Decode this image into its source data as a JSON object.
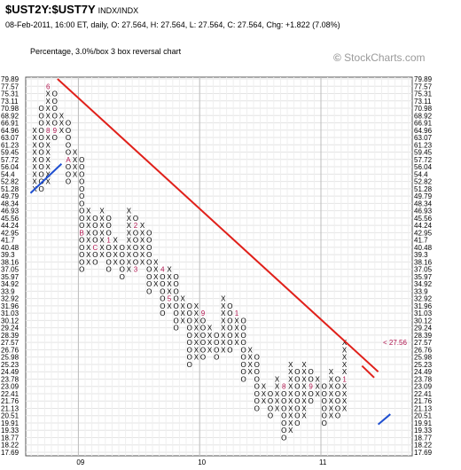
{
  "header": {
    "symbol": "$UST2Y:$UST7Y",
    "exchange": "INDX/INDX",
    "quote": "08-Feb-2011, 16:00 ET, daily, O: 27.564, H: 27.564, L: 27.564, C: 27.564, Chg: +1.822 (7.08%)",
    "description": "Percentage, 3.0%/box 3 box reversal chart",
    "brand_mark": "©",
    "brand_name": " StockCharts.com"
  },
  "chart_data": {
    "type": "point-and-figure",
    "y_ticks": [
      "79.89",
      "77.57",
      "75.31",
      "73.11",
      "70.98",
      "68.92",
      "66.91",
      "64.96",
      "63.07",
      "61.23",
      "59.45",
      "57.72",
      "56.04",
      "54.4",
      "52.82",
      "51.28",
      "49.79",
      "48.34",
      "46.93",
      "45.56",
      "44.24",
      "42.95",
      "41.7",
      "40.48",
      "39.3",
      "38.16",
      "37.05",
      "35.97",
      "34.92",
      "33.9",
      "32.92",
      "31.96",
      "31.03",
      "30.12",
      "29.24",
      "28.39",
      "27.57",
      "26.76",
      "25.98",
      "25.23",
      "24.49",
      "23.78",
      "23.09",
      "22.41",
      "21.76",
      "21.13",
      "20.51",
      "19.91",
      "19.33",
      "18.77",
      "18.22",
      "17.69"
    ],
    "x_labels": [
      {
        "text": "09",
        "column": 7
      },
      {
        "text": "10",
        "column": 25
      },
      {
        "text": "11",
        "column": 43
      }
    ],
    "last_price_label": "< 27.56",
    "last_price_index": 36,
    "box_size": "3.0%",
    "reversal": 3,
    "grid": true,
    "columns": [
      {
        "type": "X",
        "start": 15,
        "end": 7
      },
      {
        "type": "O",
        "start": 4,
        "end": 15
      },
      {
        "type": "X",
        "start": 14,
        "end": 1
      },
      {
        "type": "O",
        "start": 2,
        "end": 8
      },
      {
        "type": "X",
        "start": 7,
        "end": 5
      },
      {
        "type": "O",
        "start": 6,
        "end": 14
      },
      {
        "type": "X",
        "start": 13,
        "end": 10
      },
      {
        "type": "O",
        "start": 11,
        "end": 26
      },
      {
        "type": "X",
        "start": 25,
        "end": 18
      },
      {
        "type": "O",
        "start": 19,
        "end": 25
      },
      {
        "type": "X",
        "start": 24,
        "end": 18
      },
      {
        "type": "O",
        "start": 19,
        "end": 26
      },
      {
        "type": "X",
        "start": 25,
        "end": 22
      },
      {
        "type": "O",
        "start": 23,
        "end": 27
      },
      {
        "type": "X",
        "start": 26,
        "end": 18
      },
      {
        "type": "O",
        "start": 19,
        "end": 26
      },
      {
        "type": "X",
        "start": 25,
        "end": 20
      },
      {
        "type": "O",
        "start": 21,
        "end": 29
      },
      {
        "type": "X",
        "start": 28,
        "end": 25
      },
      {
        "type": "O",
        "start": 26,
        "end": 32
      },
      {
        "type": "X",
        "start": 31,
        "end": 26
      },
      {
        "type": "O",
        "start": 27,
        "end": 34
      },
      {
        "type": "X",
        "start": 33,
        "end": 30
      },
      {
        "type": "O",
        "start": 31,
        "end": 39
      },
      {
        "type": "X",
        "start": 38,
        "end": 31
      },
      {
        "type": "O",
        "start": 32,
        "end": 38
      },
      {
        "type": "X",
        "start": 37,
        "end": 34
      },
      {
        "type": "O",
        "start": 35,
        "end": 38
      },
      {
        "type": "X",
        "start": 37,
        "end": 30
      },
      {
        "type": "O",
        "start": 31,
        "end": 37
      },
      {
        "type": "X",
        "start": 36,
        "end": 32
      },
      {
        "type": "O",
        "start": 33,
        "end": 41
      },
      {
        "type": "X",
        "start": 40,
        "end": 37
      },
      {
        "type": "O",
        "start": 38,
        "end": 45
      },
      {
        "type": "X",
        "start": 44,
        "end": 42
      },
      {
        "type": "O",
        "start": 43,
        "end": 46
      },
      {
        "type": "X",
        "start": 45,
        "end": 41
      },
      {
        "type": "O",
        "start": 42,
        "end": 49
      },
      {
        "type": "X",
        "start": 48,
        "end": 39
      },
      {
        "type": "O",
        "start": 40,
        "end": 47
      },
      {
        "type": "X",
        "start": 46,
        "end": 39
      },
      {
        "type": "O",
        "start": 40,
        "end": 44
      },
      {
        "type": "X",
        "start": 43,
        "end": 41
      },
      {
        "type": "O",
        "start": 42,
        "end": 47
      },
      {
        "type": "X",
        "start": 46,
        "end": 40
      },
      {
        "type": "O",
        "start": 41,
        "end": 46
      },
      {
        "type": "X",
        "start": 45,
        "end": 36
      }
    ],
    "month_markers": [
      {
        "text": "5",
        "column": 0,
        "index": 4
      },
      {
        "text": "6",
        "column": 2,
        "index": 1
      },
      {
        "text": "7",
        "column": 3,
        "index": 1
      },
      {
        "text": "8",
        "column": 2,
        "index": 7
      },
      {
        "text": "9",
        "column": 3,
        "index": 7
      },
      {
        "text": "A",
        "column": 5,
        "index": 11
      },
      {
        "text": "B",
        "column": 7,
        "index": 21
      },
      {
        "text": "C",
        "column": 9,
        "index": 23
      },
      {
        "text": "1",
        "column": 11,
        "index": 22
      },
      {
        "text": "2",
        "column": 15,
        "index": 20
      },
      {
        "text": "3",
        "column": 15,
        "index": 26
      },
      {
        "text": "4",
        "column": 19,
        "index": 26
      },
      {
        "text": "5",
        "column": 20,
        "index": 30
      },
      {
        "text": "6",
        "column": 20,
        "index": 34
      },
      {
        "text": "7",
        "column": 22,
        "index": 29
      },
      {
        "text": "8",
        "column": 24,
        "index": 27
      },
      {
        "text": "9",
        "column": 25,
        "index": 32
      },
      {
        "text": "A",
        "column": 27,
        "index": 31
      },
      {
        "text": "B",
        "column": 27,
        "index": 33
      },
      {
        "text": "C",
        "column": 27,
        "index": 42
      },
      {
        "text": "1",
        "column": 30,
        "index": 32
      },
      {
        "text": "2",
        "column": 30,
        "index": 40
      },
      {
        "text": "4",
        "column": 32,
        "index": 30
      },
      {
        "text": "3",
        "column": 33,
        "index": 37
      },
      {
        "text": "5",
        "column": 34,
        "index": 32
      },
      {
        "text": "6",
        "column": 35,
        "index": 35
      },
      {
        "text": "7",
        "column": 37,
        "index": 40
      },
      {
        "text": "8",
        "column": 37,
        "index": 42
      },
      {
        "text": "9",
        "column": 41,
        "index": 42
      },
      {
        "text": "A",
        "column": 42,
        "index": 46
      },
      {
        "text": "B",
        "column": 43,
        "index": 48
      },
      {
        "text": "1",
        "column": 46,
        "index": 41
      },
      {
        "text": "2",
        "column": 52,
        "index": 45
      }
    ],
    "current_column_color_change": {
      "column": 52,
      "from_index": 38,
      "to_index": 36,
      "color": "#2ca02c"
    },
    "trendlines": [
      {
        "color": "#e0201a",
        "from": {
          "column": 3.4,
          "index": 0
        },
        "to": {
          "column": 51,
          "index": 40
        },
        "style": "resistance"
      },
      {
        "color": "#e0201a",
        "from": {
          "column": 48.6,
          "index": 39.2
        },
        "to": {
          "column": 50.4,
          "index": 40.8
        },
        "style": "resistance-short"
      },
      {
        "color": "#1f4fd0",
        "from": {
          "column": -0.6,
          "index": 15.6
        },
        "to": {
          "column": 4,
          "index": 11.6
        },
        "style": "support"
      },
      {
        "color": "#1f4fd0",
        "from": {
          "column": 51,
          "index": 47.2
        },
        "to": {
          "column": 52.8,
          "index": 45.8
        },
        "style": "support-short"
      }
    ],
    "colors": {
      "x_mark": "#000000",
      "o_mark": "#000000",
      "month_marker": "#b0164f",
      "grid": "#e4e4e4",
      "axis": "#555555"
    }
  }
}
